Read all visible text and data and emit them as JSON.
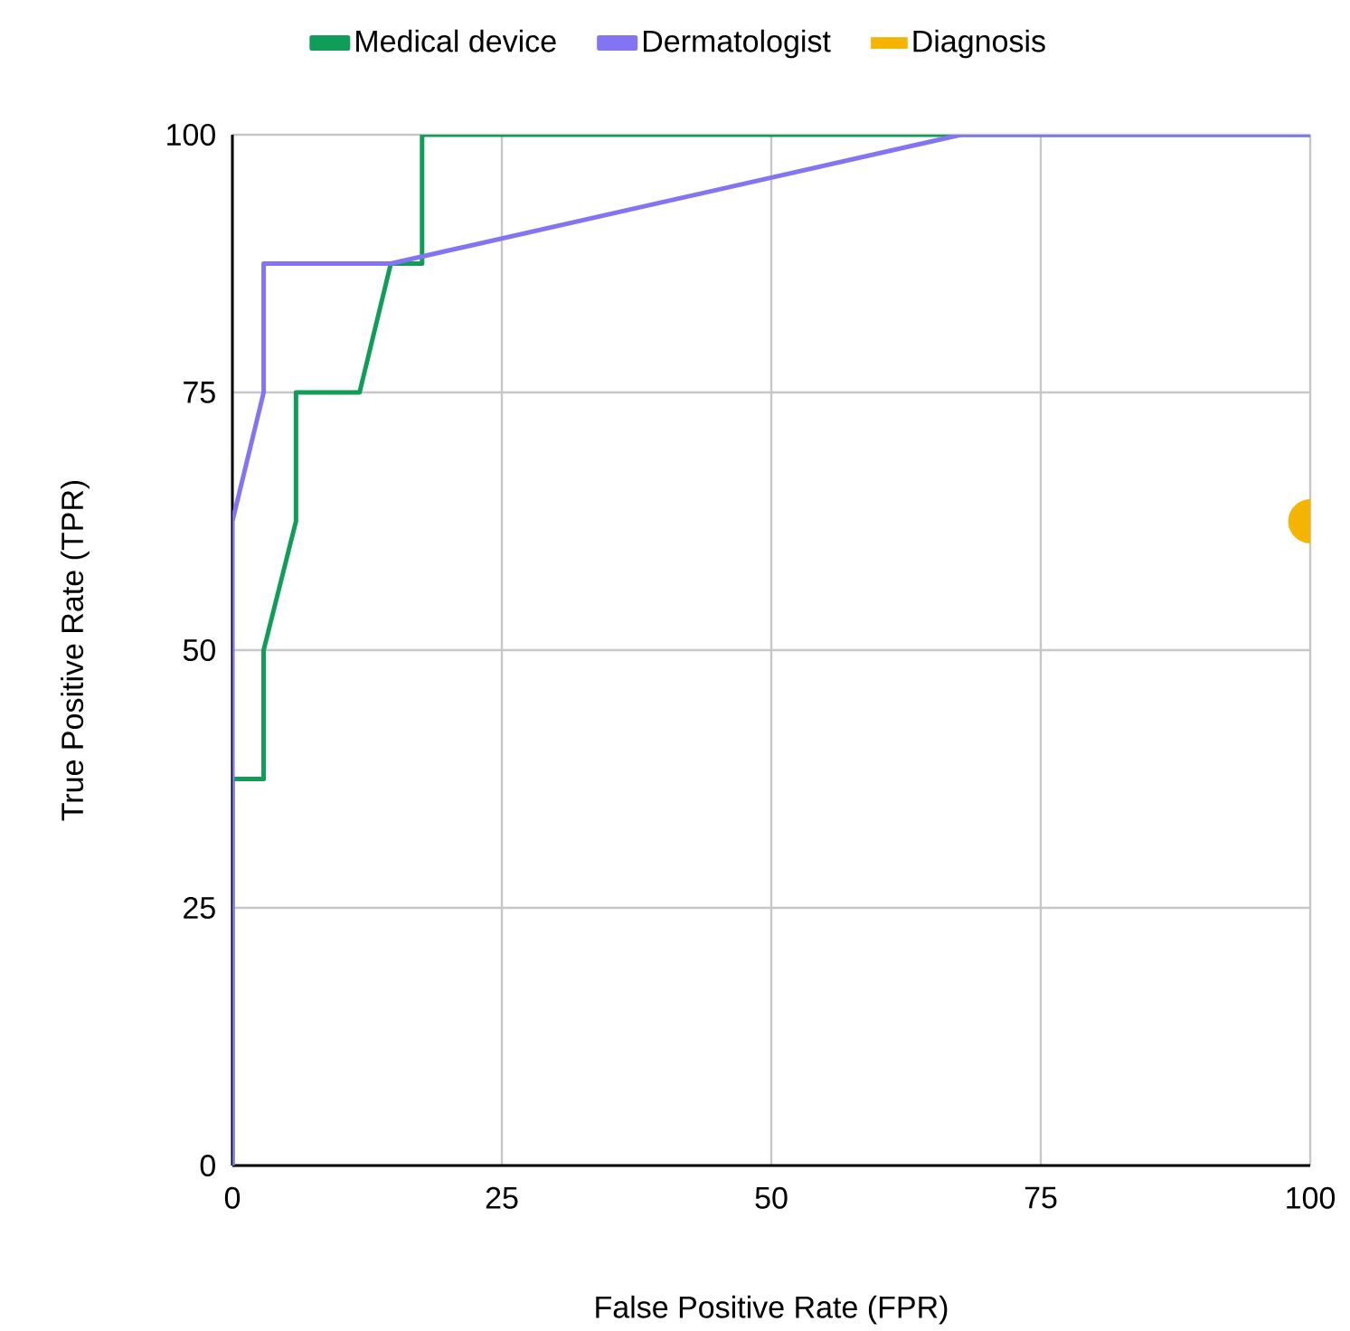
{
  "chart_data": {
    "type": "line",
    "xlabel": "False Positive Rate (FPR)",
    "ylabel": "True Positive Rate (TPR)",
    "series": [
      {
        "name": "Medical device",
        "color": "#0f9d58",
        "x": [
          0,
          0,
          2.9,
          2.9,
          5.9,
          5.9,
          11.8,
          14.7,
          17.6,
          17.6,
          100
        ],
        "values": [
          0,
          37.5,
          37.5,
          50,
          62.5,
          75,
          75,
          87.5,
          87.5,
          100,
          100
        ]
      },
      {
        "name": "Dermatologist",
        "color": "#8274f2",
        "x": [
          0,
          0,
          2.9,
          2.9,
          14.7,
          67.6,
          100
        ],
        "values": [
          0,
          62.5,
          75,
          87.5,
          87.5,
          100,
          100
        ]
      },
      {
        "name": "Diagnosis",
        "color": "#f4b400",
        "type": "scatter",
        "marker": "circle",
        "x": [
          100
        ],
        "values": [
          62.5
        ]
      }
    ],
    "xlim": [
      0,
      100
    ],
    "ylim": [
      0,
      100
    ],
    "xticks": [
      0,
      25,
      50,
      75,
      100
    ],
    "yticks": [
      0,
      25,
      50,
      75,
      100
    ],
    "grid": true,
    "legend": "top",
    "marker": "none",
    "line_style": "solid"
  }
}
